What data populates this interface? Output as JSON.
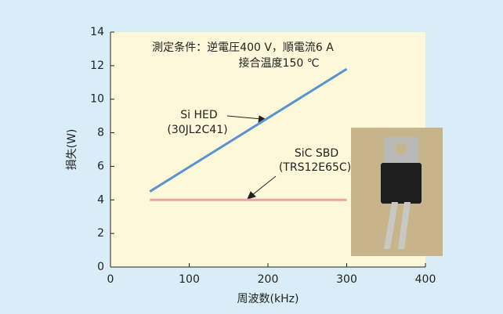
{
  "chart_data": {
    "type": "line",
    "xlabel": "周波数(kHz)",
    "ylabel": "損失(W)",
    "annotations": [
      "測定条件：逆電圧400 V，順電流6 A",
      "接合温度150 ℃"
    ],
    "series": [
      {
        "name": "Si HED",
        "label": "(30JL2C41)",
        "color": "#5a93cf",
        "x": [
          50,
          300
        ],
        "values": [
          4.5,
          11.8
        ]
      },
      {
        "name": "SiC SBD",
        "label": "(TRS12E65C)",
        "color": "#eba3a3",
        "x": [
          50,
          300
        ],
        "values": [
          4,
          4
        ]
      }
    ],
    "xlim": [
      0,
      400
    ],
    "xticks": [
      0,
      100,
      200,
      300,
      400
    ],
    "ylim": [
      0,
      14
    ],
    "yticks": [
      0,
      2,
      4,
      6,
      8,
      10,
      12,
      14
    ],
    "grid": false
  }
}
